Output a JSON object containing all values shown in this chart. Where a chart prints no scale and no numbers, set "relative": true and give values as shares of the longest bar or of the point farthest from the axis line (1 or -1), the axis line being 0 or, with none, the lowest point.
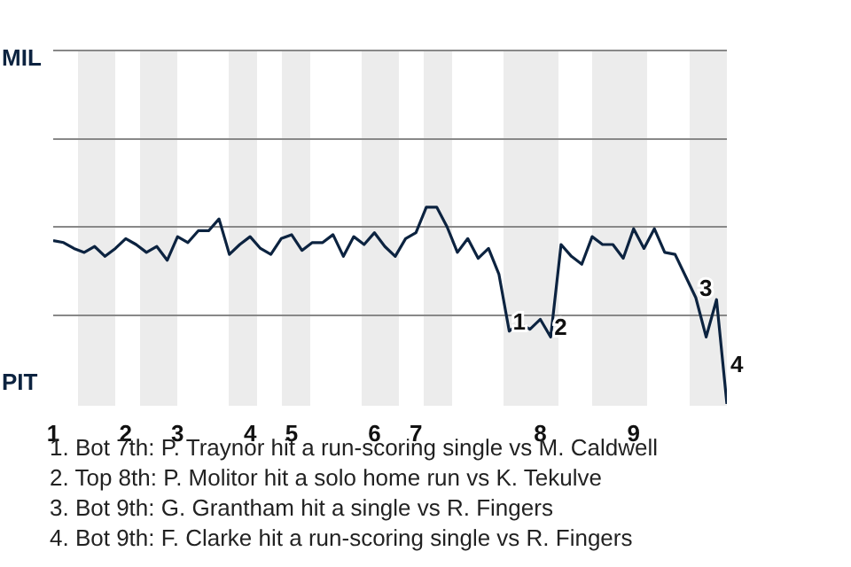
{
  "chart_data": {
    "type": "line",
    "categories": [
      "1",
      null,
      null,
      null,
      null,
      null,
      null,
      "2",
      null,
      null,
      null,
      null,
      "3",
      null,
      null,
      null,
      null,
      null,
      null,
      "4",
      null,
      null,
      null,
      "5",
      null,
      null,
      null,
      null,
      null,
      null,
      null,
      "6",
      null,
      null,
      null,
      "7",
      null,
      null,
      null,
      null,
      null,
      null,
      null,
      null,
      null,
      null,
      null,
      "8",
      null,
      null,
      null,
      null,
      null,
      null,
      null,
      null,
      "9",
      null,
      null,
      null,
      null,
      null,
      null,
      null,
      null,
      null
    ],
    "relative": true,
    "series": [
      {
        "color": "#0c2340",
        "values": [
          0.83,
          0.82,
          0.79,
          0.77,
          0.8,
          0.75,
          0.79,
          0.84,
          0.81,
          0.77,
          0.8,
          0.73,
          0.85,
          0.82,
          0.88,
          0.88,
          0.94,
          0.76,
          0.81,
          0.85,
          0.79,
          0.76,
          0.84,
          0.86,
          0.78,
          0.82,
          0.82,
          0.86,
          0.75,
          0.85,
          0.81,
          0.87,
          0.8,
          0.75,
          0.84,
          0.87,
          1,
          1,
          0.9,
          0.77,
          0.84,
          0.74,
          0.79,
          0.66,
          0.37,
          0.41,
          0.38,
          0.43,
          0.34,
          0.81,
          0.75,
          0.71,
          0.85,
          0.81,
          0.81,
          0.74,
          0.89,
          0.79,
          0.89,
          0.77,
          0.76,
          0.65,
          0.54,
          0.34,
          0.53,
          0
        ]
      }
    ],
    "marker": "none",
    "ref_lines": [
      {
        "axis": "y",
        "value": 0.45,
        "color": "#888888"
      },
      {
        "axis": "y",
        "value": 0.9,
        "color": "#888888"
      }
    ],
    "annotations": [
      {
        "text": "1",
        "y": 0.37
      },
      {
        "text": "2",
        "y": 0.34
      },
      {
        "text": "3",
        "y": 0.54
      },
      "4",
      "MIL",
      "PIT",
      "1. Bot 7th: P. Traynor hit a run-scoring single vs M. Caldwell",
      "2. Top 8th: P. Molitor hit a solo home run vs K. Tekulve",
      "3. Bot 9th: G. Grantham hit a single vs R. Fingers",
      "4. Bot 9th: F. Clarke hit a run-scoring single vs R. Fingers"
    ]
  }
}
